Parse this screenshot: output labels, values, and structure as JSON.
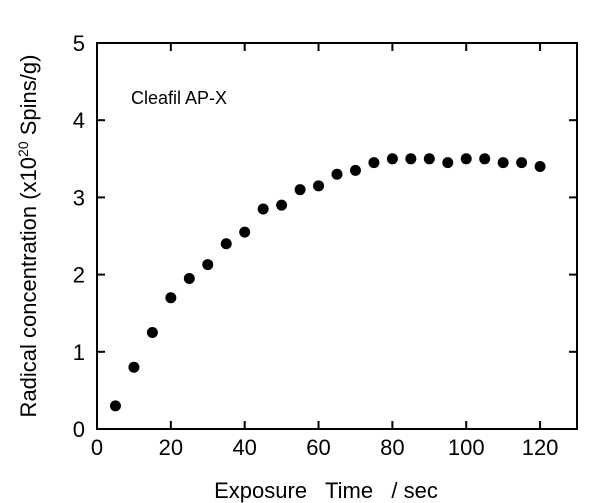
{
  "chart_data": {
    "type": "scatter",
    "annotation": "Cleafil AP-X",
    "xlabel": "Exposure   Time   / sec",
    "ylabel_main": "Radical concentration  (x10",
    "ylabel_exp": "20",
    "ylabel_tail": " Spins/g)",
    "xlim": [
      0,
      130
    ],
    "ylim": [
      0,
      5
    ],
    "x_ticks": [
      0,
      20,
      40,
      60,
      80,
      100,
      120
    ],
    "y_ticks": [
      0,
      1,
      2,
      3,
      4,
      5
    ],
    "grid": false,
    "marker_color": "#000000",
    "series": [
      {
        "x": [
          5,
          10,
          15,
          20,
          25,
          30,
          35,
          40,
          45,
          50,
          55,
          60,
          65,
          70,
          75,
          80,
          85,
          90,
          95,
          100,
          105,
          110,
          115,
          120
        ],
        "y": [
          0.3,
          0.8,
          1.25,
          1.7,
          1.95,
          2.13,
          2.4,
          2.55,
          2.85,
          2.9,
          3.1,
          3.15,
          3.3,
          3.35,
          3.45,
          3.5,
          3.5,
          3.5,
          3.45,
          3.5,
          3.5,
          3.45,
          3.45,
          3.4
        ]
      }
    ]
  }
}
